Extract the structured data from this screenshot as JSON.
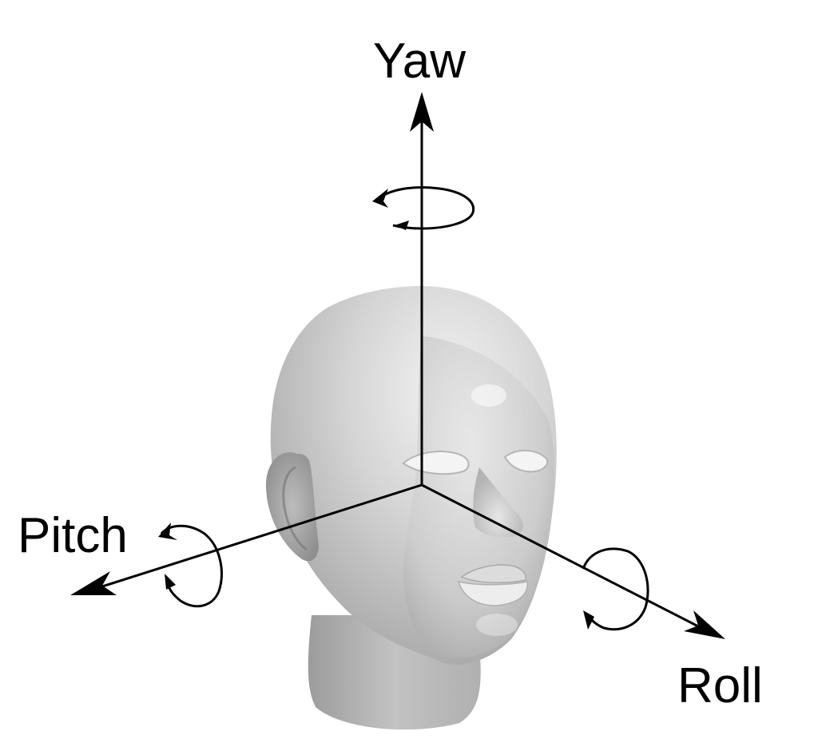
{
  "axes": {
    "yaw": {
      "label": "Yaw"
    },
    "pitch": {
      "label": "Pitch"
    },
    "roll": {
      "label": "Roll"
    }
  },
  "colors": {
    "background": "#ffffff",
    "axis": "#000000",
    "head_light": "#eeeeee",
    "head_mid": "#cfcfcf",
    "head_shadow": "#9a9a9a"
  }
}
